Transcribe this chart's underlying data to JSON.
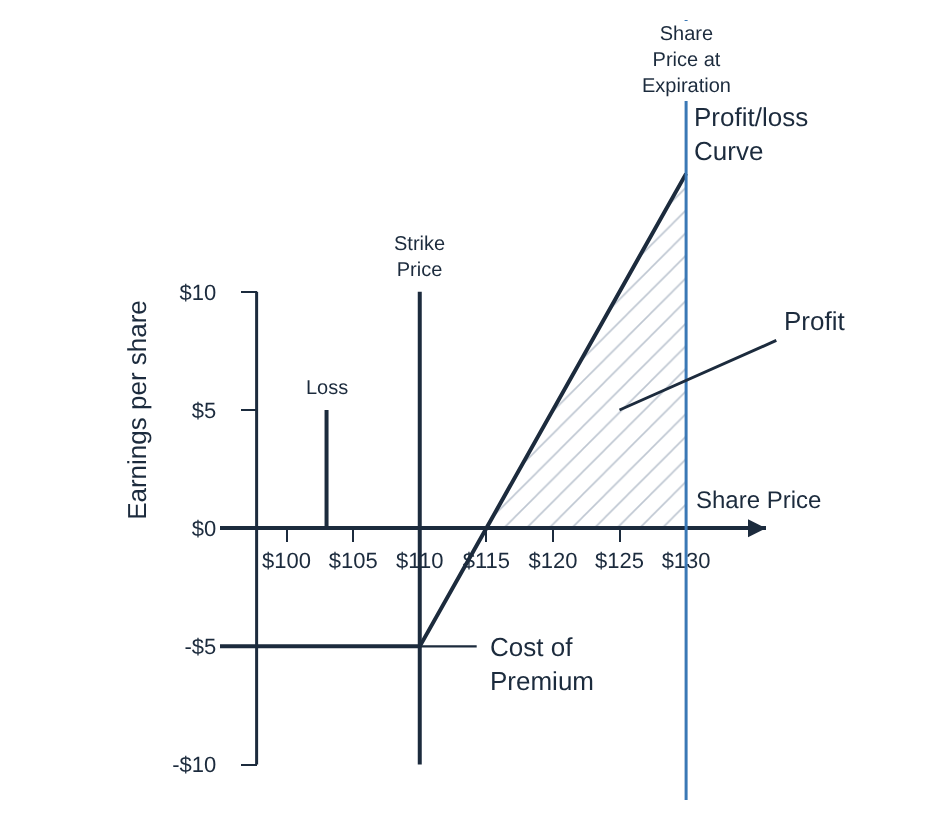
{
  "chart_data": {
    "type": "line",
    "xlabel": "Share Price",
    "ylabel": "Earnings per share",
    "xlim": [
      95,
      136
    ],
    "ylim": [
      -11.5,
      21.5
    ],
    "xticks": [
      {
        "value": 100,
        "label": "$100"
      },
      {
        "value": 105,
        "label": "$105"
      },
      {
        "value": 110,
        "label": "$110"
      },
      {
        "value": 115,
        "label": "$115"
      },
      {
        "value": 120,
        "label": "$120"
      },
      {
        "value": 125,
        "label": "$125"
      },
      {
        "value": 130,
        "label": "$130"
      }
    ],
    "yticks": [
      {
        "value": 10,
        "label": "$10"
      },
      {
        "value": 5,
        "label": "$5"
      },
      {
        "value": 0,
        "label": "$0"
      },
      {
        "value": -5,
        "label": "-$5"
      },
      {
        "value": -10,
        "label": "-$10"
      }
    ],
    "series": [
      {
        "type": "area",
        "color": "#7d8ea3",
        "x": [
          115,
          130
        ],
        "values": [
          0,
          15
        ]
      },
      {
        "color": "#1c2b3d",
        "x": [
          95,
          110,
          115,
          130
        ],
        "values": [
          -5,
          -5,
          0,
          15
        ]
      },
      {
        "color": "#1c2b3d",
        "x": [
          110,
          110
        ],
        "values": [
          10,
          -10
        ]
      },
      {
        "color": "#1c2b3d",
        "x": [
          103,
          103
        ],
        "values": [
          5,
          0
        ]
      }
    ],
    "ref_lines": [
      {
        "axis": "x",
        "value": 130,
        "label": "Share\nPrice at\nExpiration",
        "color": "#3a78b5"
      }
    ],
    "annotations": [
      {
        "text": "Strike\nPrice",
        "x": 110,
        "y": 10
      },
      {
        "text": "Loss",
        "x": 103,
        "y": 5
      },
      {
        "text": "Profit/loss\nCurve",
        "x": 130,
        "y": 15
      },
      "Profit",
      {
        "text": "Cost of\nPremium",
        "x": 110,
        "y": -5
      }
    ],
    "legend": false,
    "marker": "none",
    "line_style": "solid"
  }
}
